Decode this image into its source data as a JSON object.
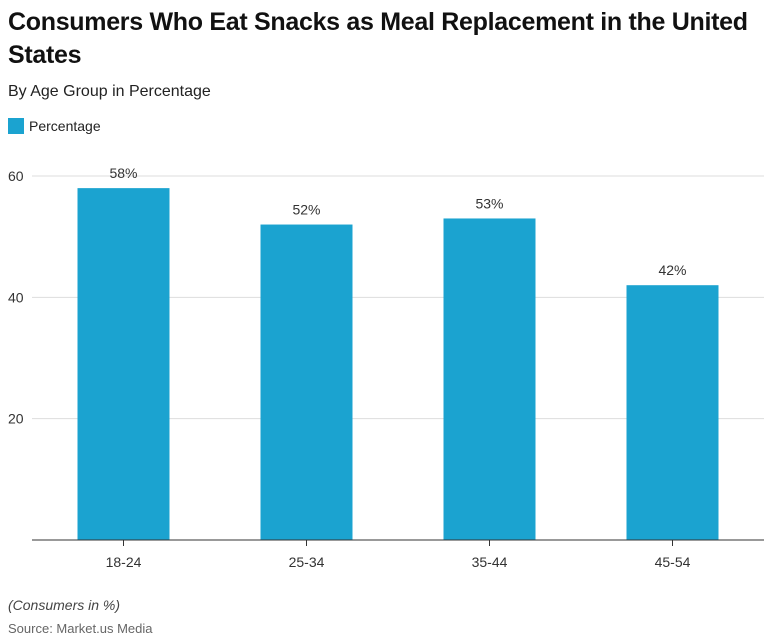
{
  "chart_data": {
    "type": "bar",
    "title": "Consumers Who Eat Snacks as Meal Replacement in the United States",
    "subtitle": "By Age Group in Percentage",
    "categories": [
      "18-24",
      "25-34",
      "35-44",
      "45-54"
    ],
    "series": [
      {
        "name": "Percentage",
        "values": [
          58,
          52,
          53,
          42
        ]
      }
    ],
    "data_labels": [
      "58%",
      "52%",
      "53%",
      "42%"
    ],
    "yticks": [
      20,
      40,
      60
    ],
    "ylim": [
      0,
      60
    ],
    "grid": true,
    "legend": "top-left",
    "color": "#1ba3d0",
    "note": "(Consumers in %)",
    "source": "Source: Market.us Media"
  }
}
